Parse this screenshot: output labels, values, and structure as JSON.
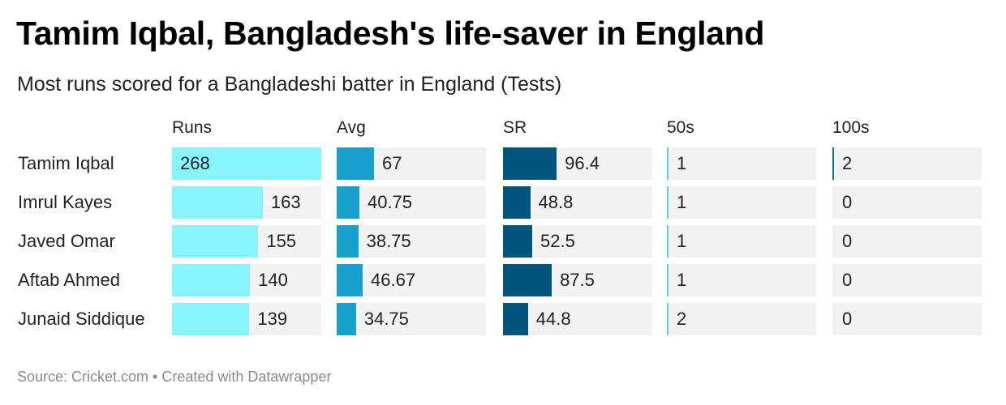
{
  "title": "Tamim Iqbal, Bangladesh's life-saver in England",
  "subtitle": "Most runs scored for a Bangladeshi batter in England (Tests)",
  "footer": "Source: Cricket.com • Created with Datawrapper",
  "chart_data": {
    "type": "table",
    "scale_max": 268,
    "columns": [
      {
        "key": "runs",
        "label": "Runs",
        "color": "#88f4fe"
      },
      {
        "key": "avg",
        "label": "Avg",
        "color": "#18a1cd"
      },
      {
        "key": "sr",
        "label": "SR",
        "color": "#01557d"
      },
      {
        "key": "fifties",
        "label": "50s",
        "color": "#5ccbf2"
      },
      {
        "key": "hundreds",
        "label": "100s",
        "color": "#0a78a4"
      }
    ],
    "rows": [
      {
        "name": "Tamim Iqbal",
        "values": [
          {
            "v": 268,
            "t": "268"
          },
          {
            "v": 67,
            "t": "67"
          },
          {
            "v": 96.4,
            "t": "96.4"
          },
          {
            "v": 1,
            "t": "1"
          },
          {
            "v": 2,
            "t": "2"
          }
        ]
      },
      {
        "name": "Imrul Kayes",
        "values": [
          {
            "v": 163,
            "t": "163"
          },
          {
            "v": 40.75,
            "t": "40.75"
          },
          {
            "v": 48.8,
            "t": "48.8"
          },
          {
            "v": 1,
            "t": "1"
          },
          {
            "v": 0,
            "t": "0"
          }
        ]
      },
      {
        "name": "Javed Omar",
        "values": [
          {
            "v": 155,
            "t": "155"
          },
          {
            "v": 38.75,
            "t": "38.75"
          },
          {
            "v": 52.5,
            "t": "52.5"
          },
          {
            "v": 1,
            "t": "1"
          },
          {
            "v": 0,
            "t": "0"
          }
        ]
      },
      {
        "name": "Aftab Ahmed",
        "values": [
          {
            "v": 140,
            "t": "140"
          },
          {
            "v": 46.67,
            "t": "46.67"
          },
          {
            "v": 87.5,
            "t": "87.5"
          },
          {
            "v": 1,
            "t": "1"
          },
          {
            "v": 0,
            "t": "0"
          }
        ]
      },
      {
        "name": "Junaid Siddique",
        "values": [
          {
            "v": 139,
            "t": "139"
          },
          {
            "v": 34.75,
            "t": "34.75"
          },
          {
            "v": 44.8,
            "t": "44.8"
          },
          {
            "v": 2,
            "t": "2"
          },
          {
            "v": 0,
            "t": "0"
          }
        ]
      }
    ]
  }
}
